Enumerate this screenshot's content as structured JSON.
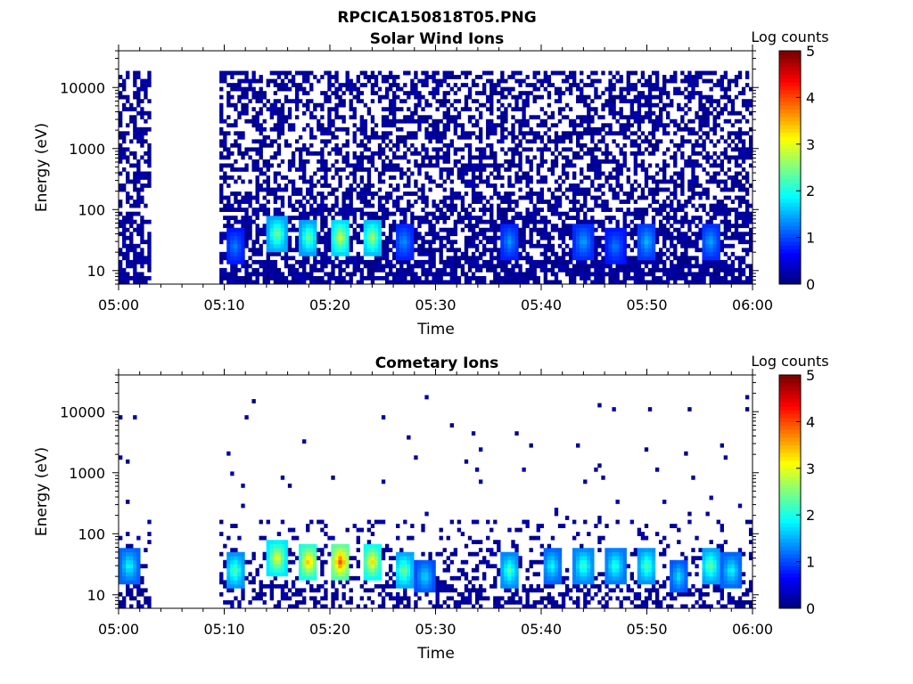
{
  "figure": {
    "title": "RPCICA150818T05.PNG"
  },
  "chart_data": [
    {
      "type": "heatmap",
      "title": "Solar Wind Ions",
      "xlabel": "Time",
      "ylabel": "Energy (eV)",
      "x_ticks": [
        "05:00",
        "05:10",
        "05:20",
        "05:30",
        "05:40",
        "05:50",
        "06:00"
      ],
      "xlim": [
        "05:00",
        "06:00"
      ],
      "y_scale": "log",
      "y_ticks": [
        "10",
        "100",
        "1000",
        "10000"
      ],
      "ylim": [
        6,
        40000
      ],
      "data_gap": [
        "05:03",
        "05:09"
      ],
      "colorbar": {
        "label": "Log counts",
        "ticks": [
          "0",
          "1",
          "2",
          "3",
          "4",
          "5"
        ],
        "range": [
          0,
          5
        ],
        "colormap": "jet"
      },
      "intensity_bands": [
        {
          "time": "05:11",
          "energy": 25,
          "log_counts": 1.3
        },
        {
          "time": "05:15",
          "energy": 40,
          "log_counts": 2.6
        },
        {
          "time": "05:18",
          "energy": 35,
          "log_counts": 2.5
        },
        {
          "time": "05:21",
          "energy": 35,
          "log_counts": 3.0
        },
        {
          "time": "05:24",
          "energy": 35,
          "log_counts": 2.8
        },
        {
          "time": "05:27",
          "energy": 30,
          "log_counts": 1.4
        },
        {
          "time": "05:37",
          "energy": 30,
          "log_counts": 1.4
        },
        {
          "time": "05:44",
          "energy": 30,
          "log_counts": 1.5
        },
        {
          "time": "05:47",
          "energy": 25,
          "log_counts": 1.3
        },
        {
          "time": "05:50",
          "energy": 30,
          "log_counts": 1.6
        },
        {
          "time": "05:56",
          "energy": 30,
          "log_counts": 1.5
        }
      ]
    },
    {
      "type": "heatmap",
      "title": "Cometary Ions",
      "xlabel": "Time",
      "ylabel": "Energy (eV)",
      "x_ticks": [
        "05:00",
        "05:10",
        "05:20",
        "05:30",
        "05:40",
        "05:50",
        "06:00"
      ],
      "xlim": [
        "05:00",
        "06:00"
      ],
      "y_scale": "log",
      "y_ticks": [
        "10",
        "100",
        "1000",
        "10000"
      ],
      "ylim": [
        6,
        40000
      ],
      "data_gap": [
        "05:03",
        "05:09"
      ],
      "colorbar": {
        "label": "Log counts",
        "ticks": [
          "0",
          "1",
          "2",
          "3",
          "4",
          "5"
        ],
        "range": [
          0,
          5
        ],
        "colormap": "jet"
      },
      "intensity_bands": [
        {
          "time": "05:01",
          "energy": 30,
          "log_counts": 2.0
        },
        {
          "time": "05:11",
          "energy": 25,
          "log_counts": 2.4
        },
        {
          "time": "05:15",
          "energy": 40,
          "log_counts": 3.2
        },
        {
          "time": "05:18",
          "energy": 35,
          "log_counts": 3.6
        },
        {
          "time": "05:21",
          "energy": 35,
          "log_counts": 4.1
        },
        {
          "time": "05:24",
          "energy": 35,
          "log_counts": 3.4
        },
        {
          "time": "05:27",
          "energy": 25,
          "log_counts": 2.6
        },
        {
          "time": "05:29",
          "energy": 20,
          "log_counts": 1.8
        },
        {
          "time": "05:37",
          "energy": 25,
          "log_counts": 2.3
        },
        {
          "time": "05:41",
          "energy": 30,
          "log_counts": 2.0
        },
        {
          "time": "05:44",
          "energy": 30,
          "log_counts": 2.3
        },
        {
          "time": "05:47",
          "energy": 30,
          "log_counts": 2.2
        },
        {
          "time": "05:50",
          "energy": 30,
          "log_counts": 2.4
        },
        {
          "time": "05:53",
          "energy": 20,
          "log_counts": 1.8
        },
        {
          "time": "05:56",
          "energy": 30,
          "log_counts": 2.5
        },
        {
          "time": "05:58",
          "energy": 25,
          "log_counts": 2.0
        }
      ]
    }
  ]
}
